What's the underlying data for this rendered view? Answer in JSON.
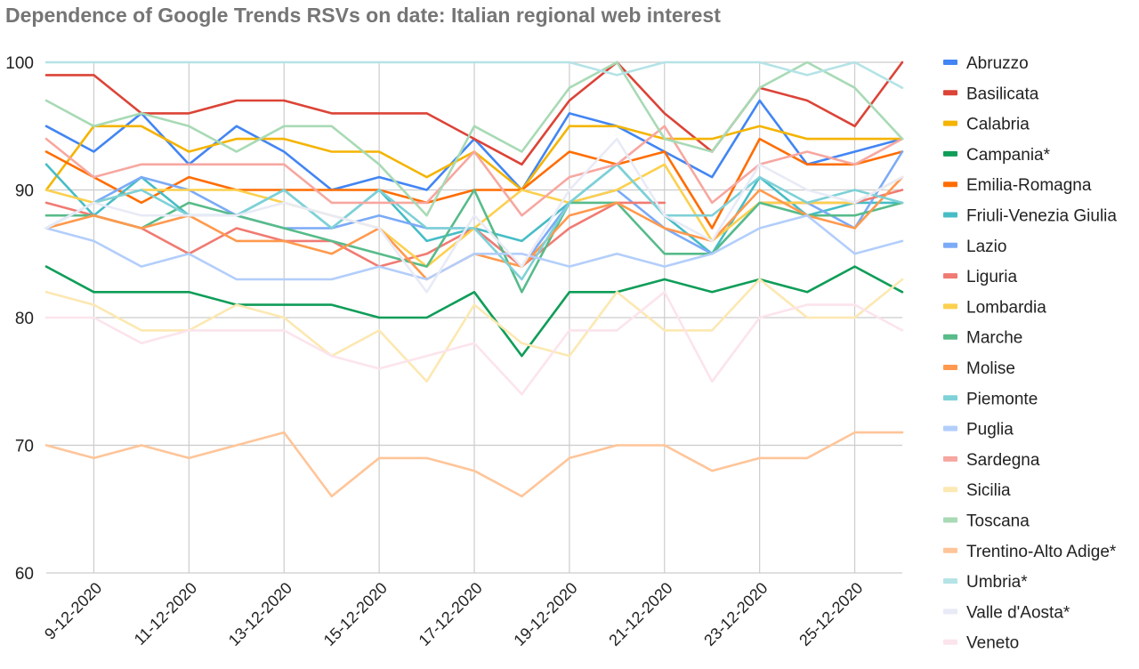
{
  "chart_data": {
    "type": "line",
    "title": "Dependence of Google Trends RSVs on date: Italian regional web interest",
    "xlabel": "",
    "ylabel": "",
    "ylim": [
      60,
      100
    ],
    "yticks": [
      60,
      70,
      80,
      90,
      100
    ],
    "grid": true,
    "legend_position": "right",
    "x": [
      "8-12-2020",
      "9-12-2020",
      "10-12-2020",
      "11-12-2020",
      "12-12-2020",
      "13-12-2020",
      "14-12-2020",
      "15-12-2020",
      "16-12-2020",
      "17-12-2020",
      "18-12-2020",
      "19-12-2020",
      "20-12-2020",
      "21-12-2020",
      "22-12-2020",
      "23-12-2020",
      "24-12-2020",
      "25-12-2020",
      "26-12-2020"
    ],
    "xtick_labels": [
      "9-12-2020",
      "11-12-2020",
      "13-12-2020",
      "15-12-2020",
      "17-12-2020",
      "19-12-2020",
      "21-12-2020",
      "23-12-2020",
      "25-12-2020"
    ],
    "series": [
      {
        "name": "Abruzzo",
        "color": "#4285f4",
        "values": [
          95,
          93,
          96,
          92,
          95,
          93,
          90,
          91,
          90,
          94,
          90,
          96,
          95,
          93,
          91,
          97,
          92,
          93,
          94
        ]
      },
      {
        "name": "Basilicata",
        "color": "#db4437",
        "values": [
          99,
          99,
          96,
          96,
          97,
          97,
          96,
          96,
          96,
          94,
          92,
          97,
          100,
          96,
          93,
          98,
          97,
          95,
          100
        ]
      },
      {
        "name": "Calabria",
        "color": "#f4b400",
        "values": [
          90,
          95,
          95,
          93,
          94,
          94,
          93,
          93,
          91,
          93,
          90,
          95,
          95,
          94,
          94,
          95,
          94,
          94,
          94
        ]
      },
      {
        "name": "Campania*",
        "color": "#0f9d58",
        "values": [
          84,
          82,
          82,
          82,
          81,
          81,
          81,
          80,
          80,
          82,
          77,
          82,
          82,
          83,
          82,
          83,
          82,
          84,
          82
        ]
      },
      {
        "name": "Emilia-Romagna",
        "color": "#ff6d01",
        "values": [
          93,
          91,
          89,
          91,
          90,
          90,
          90,
          90,
          89,
          90,
          90,
          93,
          92,
          93,
          87,
          94,
          92,
          92,
          93
        ]
      },
      {
        "name": "Friuli-Venezia Giulia",
        "color": "#46bdc6",
        "values": [
          92,
          88,
          91,
          88,
          88,
          90,
          87,
          90,
          86,
          87,
          86,
          89,
          92,
          88,
          85,
          91,
          88,
          89,
          89
        ]
      },
      {
        "name": "Lazio",
        "color": "#7baaf7",
        "values": [
          87,
          89,
          91,
          90,
          88,
          87,
          87,
          88,
          87,
          87,
          84,
          89,
          90,
          87,
          85,
          89,
          89,
          87,
          93
        ]
      },
      {
        "name": "Liguria",
        "color": "#f07b72",
        "values": [
          89,
          88,
          87,
          85,
          87,
          86,
          86,
          84,
          85,
          87,
          84,
          87,
          89,
          89,
          null,
          89,
          89,
          89,
          90
        ]
      },
      {
        "name": "Lombardia",
        "color": "#fcd04f",
        "values": [
          90,
          89,
          90,
          90,
          90,
          89,
          88,
          87,
          84,
          87,
          90,
          89,
          90,
          92,
          86,
          89,
          89,
          89,
          91
        ]
      },
      {
        "name": "Marche",
        "color": "#57bb8a",
        "values": [
          88,
          88,
          87,
          89,
          88,
          87,
          86,
          85,
          84,
          90,
          82,
          89,
          89,
          85,
          85,
          89,
          88,
          88,
          89
        ]
      },
      {
        "name": "Molise",
        "color": "#ff994d",
        "values": [
          87,
          88,
          87,
          88,
          86,
          86,
          85,
          87,
          83,
          85,
          84,
          88,
          89,
          87,
          86,
          90,
          88,
          87,
          91
        ]
      },
      {
        "name": "Piemonte",
        "color": "#7ed1d7",
        "values": [
          87,
          89,
          90,
          88,
          88,
          90,
          87,
          90,
          87,
          87,
          83,
          89,
          92,
          88,
          88,
          91,
          89,
          90,
          89
        ]
      },
      {
        "name": "Puglia",
        "color": "#b3cefb",
        "values": [
          87,
          86,
          84,
          85,
          83,
          83,
          83,
          84,
          83,
          85,
          85,
          84,
          85,
          84,
          85,
          87,
          88,
          85,
          86
        ]
      },
      {
        "name": "Sardegna",
        "color": "#f7a7a0",
        "values": [
          94,
          91,
          92,
          92,
          92,
          92,
          89,
          89,
          89,
          93,
          88,
          91,
          92,
          95,
          89,
          92,
          93,
          92,
          94
        ]
      },
      {
        "name": "Sicilia",
        "color": "#fce8b2",
        "values": [
          82,
          81,
          79,
          79,
          81,
          80,
          77,
          79,
          75,
          81,
          78,
          77,
          82,
          79,
          79,
          83,
          80,
          80,
          83
        ]
      },
      {
        "name": "Toscana",
        "color": "#a8dab5",
        "values": [
          97,
          95,
          96,
          95,
          93,
          95,
          95,
          92,
          88,
          95,
          93,
          98,
          100,
          94,
          93,
          98,
          100,
          98,
          94
        ]
      },
      {
        "name": "Trentino-Alto Adige*",
        "color": "#ffc599",
        "values": [
          70,
          69,
          70,
          69,
          70,
          71,
          66,
          69,
          69,
          68,
          66,
          69,
          70,
          70,
          68,
          69,
          69,
          71,
          71
        ]
      },
      {
        "name": "Umbria*",
        "color": "#b5e3e6",
        "values": [
          100,
          100,
          100,
          100,
          100,
          100,
          100,
          100,
          100,
          100,
          100,
          100,
          99,
          100,
          100,
          100,
          99,
          100,
          98
        ]
      },
      {
        "name": "Valle d'Aosta*",
        "color": "#e8eaf6",
        "values": [
          87,
          89,
          88,
          88,
          88,
          89,
          88,
          87,
          82,
          88,
          84,
          90,
          94,
          88,
          86,
          92,
          90,
          89,
          91
        ]
      },
      {
        "name": "Veneto",
        "color": "#fce4ec",
        "values": [
          80,
          80,
          78,
          79,
          79,
          79,
          77,
          76,
          77,
          78,
          74,
          79,
          79,
          82,
          75,
          80,
          81,
          81,
          79
        ]
      }
    ]
  }
}
